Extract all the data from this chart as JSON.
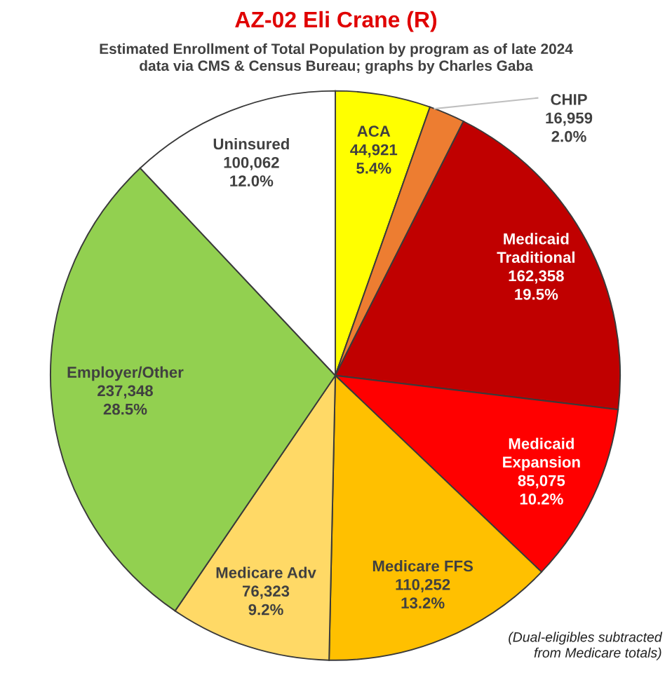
{
  "chart_data": {
    "type": "pie",
    "title": "AZ-02 Eli Crane (R)",
    "subtitle": "Estimated Enrollment of Total Population by program as of late 2024\ndata via CMS & Census Bureau; graphs by Charles Gaba",
    "categories": [
      "ACA",
      "CHIP",
      "Medicaid\nTraditional",
      "Medicaid\nExpansion",
      "Medicare FFS",
      "Medicare Adv",
      "Employer/Other",
      "Uninsured"
    ],
    "values": [
      44921,
      16959,
      162358,
      85075,
      110252,
      76323,
      237348,
      100062
    ],
    "value_labels": [
      "44,921\n5.4%",
      "16,959\n2.0%",
      "162,358\n19.5%",
      "85,075\n10.2%",
      "110,252\n13.2%",
      "76,323\n9.2%",
      "237,348\n28.5%",
      "100,062\n12.0%"
    ],
    "colors": [
      "#ffff00",
      "#ed7d31",
      "#c00000",
      "#ff0000",
      "#ffc000",
      "#ffd966",
      "#92d050",
      "#ffffff"
    ],
    "annotations": [
      "(Dual-eligibles subtracted\nfrom Medicare totals)"
    ]
  }
}
